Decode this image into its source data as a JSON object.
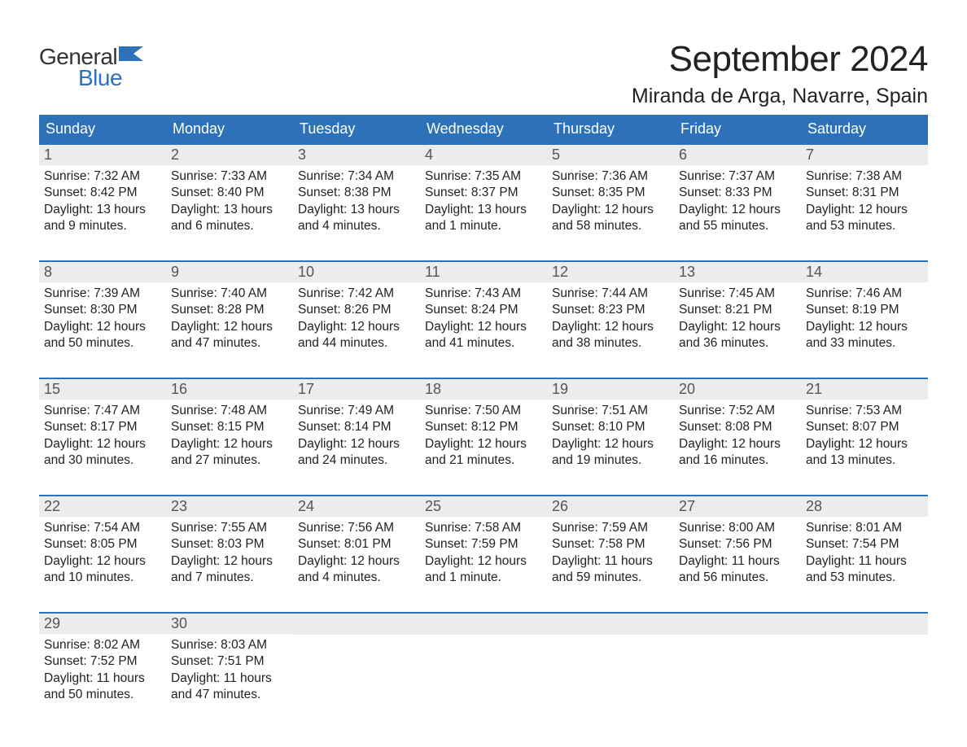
{
  "logo": {
    "general": "General",
    "blue": "Blue"
  },
  "title": "September 2024",
  "location": "Miranda de Arga, Navarre, Spain",
  "colors": {
    "header_bg": "#2d72b8",
    "header_text": "#ffffff",
    "daynum_bg": "#ececec",
    "daynum_text": "#555555",
    "body_text": "#222222",
    "border": "#2d72b8",
    "logo_gray": "#333333",
    "logo_blue": "#2d72b8",
    "page_bg": "#ffffff"
  },
  "structure": {
    "type": "calendar-table",
    "columns": 7,
    "rows": 5,
    "title_fontsize": 44,
    "location_fontsize": 25,
    "dow_fontsize": 18,
    "body_fontsize": 15.5
  },
  "dow": [
    "Sunday",
    "Monday",
    "Tuesday",
    "Wednesday",
    "Thursday",
    "Friday",
    "Saturday"
  ],
  "weeks": [
    [
      {
        "day": "1",
        "sunrise": "Sunrise: 7:32 AM",
        "sunset": "Sunset: 8:42 PM",
        "dl1": "Daylight: 13 hours",
        "dl2": "and 9 minutes."
      },
      {
        "day": "2",
        "sunrise": "Sunrise: 7:33 AM",
        "sunset": "Sunset: 8:40 PM",
        "dl1": "Daylight: 13 hours",
        "dl2": "and 6 minutes."
      },
      {
        "day": "3",
        "sunrise": "Sunrise: 7:34 AM",
        "sunset": "Sunset: 8:38 PM",
        "dl1": "Daylight: 13 hours",
        "dl2": "and 4 minutes."
      },
      {
        "day": "4",
        "sunrise": "Sunrise: 7:35 AM",
        "sunset": "Sunset: 8:37 PM",
        "dl1": "Daylight: 13 hours",
        "dl2": "and 1 minute."
      },
      {
        "day": "5",
        "sunrise": "Sunrise: 7:36 AM",
        "sunset": "Sunset: 8:35 PM",
        "dl1": "Daylight: 12 hours",
        "dl2": "and 58 minutes."
      },
      {
        "day": "6",
        "sunrise": "Sunrise: 7:37 AM",
        "sunset": "Sunset: 8:33 PM",
        "dl1": "Daylight: 12 hours",
        "dl2": "and 55 minutes."
      },
      {
        "day": "7",
        "sunrise": "Sunrise: 7:38 AM",
        "sunset": "Sunset: 8:31 PM",
        "dl1": "Daylight: 12 hours",
        "dl2": "and 53 minutes."
      }
    ],
    [
      {
        "day": "8",
        "sunrise": "Sunrise: 7:39 AM",
        "sunset": "Sunset: 8:30 PM",
        "dl1": "Daylight: 12 hours",
        "dl2": "and 50 minutes."
      },
      {
        "day": "9",
        "sunrise": "Sunrise: 7:40 AM",
        "sunset": "Sunset: 8:28 PM",
        "dl1": "Daylight: 12 hours",
        "dl2": "and 47 minutes."
      },
      {
        "day": "10",
        "sunrise": "Sunrise: 7:42 AM",
        "sunset": "Sunset: 8:26 PM",
        "dl1": "Daylight: 12 hours",
        "dl2": "and 44 minutes."
      },
      {
        "day": "11",
        "sunrise": "Sunrise: 7:43 AM",
        "sunset": "Sunset: 8:24 PM",
        "dl1": "Daylight: 12 hours",
        "dl2": "and 41 minutes."
      },
      {
        "day": "12",
        "sunrise": "Sunrise: 7:44 AM",
        "sunset": "Sunset: 8:23 PM",
        "dl1": "Daylight: 12 hours",
        "dl2": "and 38 minutes."
      },
      {
        "day": "13",
        "sunrise": "Sunrise: 7:45 AM",
        "sunset": "Sunset: 8:21 PM",
        "dl1": "Daylight: 12 hours",
        "dl2": "and 36 minutes."
      },
      {
        "day": "14",
        "sunrise": "Sunrise: 7:46 AM",
        "sunset": "Sunset: 8:19 PM",
        "dl1": "Daylight: 12 hours",
        "dl2": "and 33 minutes."
      }
    ],
    [
      {
        "day": "15",
        "sunrise": "Sunrise: 7:47 AM",
        "sunset": "Sunset: 8:17 PM",
        "dl1": "Daylight: 12 hours",
        "dl2": "and 30 minutes."
      },
      {
        "day": "16",
        "sunrise": "Sunrise: 7:48 AM",
        "sunset": "Sunset: 8:15 PM",
        "dl1": "Daylight: 12 hours",
        "dl2": "and 27 minutes."
      },
      {
        "day": "17",
        "sunrise": "Sunrise: 7:49 AM",
        "sunset": "Sunset: 8:14 PM",
        "dl1": "Daylight: 12 hours",
        "dl2": "and 24 minutes."
      },
      {
        "day": "18",
        "sunrise": "Sunrise: 7:50 AM",
        "sunset": "Sunset: 8:12 PM",
        "dl1": "Daylight: 12 hours",
        "dl2": "and 21 minutes."
      },
      {
        "day": "19",
        "sunrise": "Sunrise: 7:51 AM",
        "sunset": "Sunset: 8:10 PM",
        "dl1": "Daylight: 12 hours",
        "dl2": "and 19 minutes."
      },
      {
        "day": "20",
        "sunrise": "Sunrise: 7:52 AM",
        "sunset": "Sunset: 8:08 PM",
        "dl1": "Daylight: 12 hours",
        "dl2": "and 16 minutes."
      },
      {
        "day": "21",
        "sunrise": "Sunrise: 7:53 AM",
        "sunset": "Sunset: 8:07 PM",
        "dl1": "Daylight: 12 hours",
        "dl2": "and 13 minutes."
      }
    ],
    [
      {
        "day": "22",
        "sunrise": "Sunrise: 7:54 AM",
        "sunset": "Sunset: 8:05 PM",
        "dl1": "Daylight: 12 hours",
        "dl2": "and 10 minutes."
      },
      {
        "day": "23",
        "sunrise": "Sunrise: 7:55 AM",
        "sunset": "Sunset: 8:03 PM",
        "dl1": "Daylight: 12 hours",
        "dl2": "and 7 minutes."
      },
      {
        "day": "24",
        "sunrise": "Sunrise: 7:56 AM",
        "sunset": "Sunset: 8:01 PM",
        "dl1": "Daylight: 12 hours",
        "dl2": "and 4 minutes."
      },
      {
        "day": "25",
        "sunrise": "Sunrise: 7:58 AM",
        "sunset": "Sunset: 7:59 PM",
        "dl1": "Daylight: 12 hours",
        "dl2": "and 1 minute."
      },
      {
        "day": "26",
        "sunrise": "Sunrise: 7:59 AM",
        "sunset": "Sunset: 7:58 PM",
        "dl1": "Daylight: 11 hours",
        "dl2": "and 59 minutes."
      },
      {
        "day": "27",
        "sunrise": "Sunrise: 8:00 AM",
        "sunset": "Sunset: 7:56 PM",
        "dl1": "Daylight: 11 hours",
        "dl2": "and 56 minutes."
      },
      {
        "day": "28",
        "sunrise": "Sunrise: 8:01 AM",
        "sunset": "Sunset: 7:54 PM",
        "dl1": "Daylight: 11 hours",
        "dl2": "and 53 minutes."
      }
    ],
    [
      {
        "day": "29",
        "sunrise": "Sunrise: 8:02 AM",
        "sunset": "Sunset: 7:52 PM",
        "dl1": "Daylight: 11 hours",
        "dl2": "and 50 minutes."
      },
      {
        "day": "30",
        "sunrise": "Sunrise: 8:03 AM",
        "sunset": "Sunset: 7:51 PM",
        "dl1": "Daylight: 11 hours",
        "dl2": "and 47 minutes."
      },
      {
        "empty": true
      },
      {
        "empty": true
      },
      {
        "empty": true
      },
      {
        "empty": true
      },
      {
        "empty": true
      }
    ]
  ]
}
